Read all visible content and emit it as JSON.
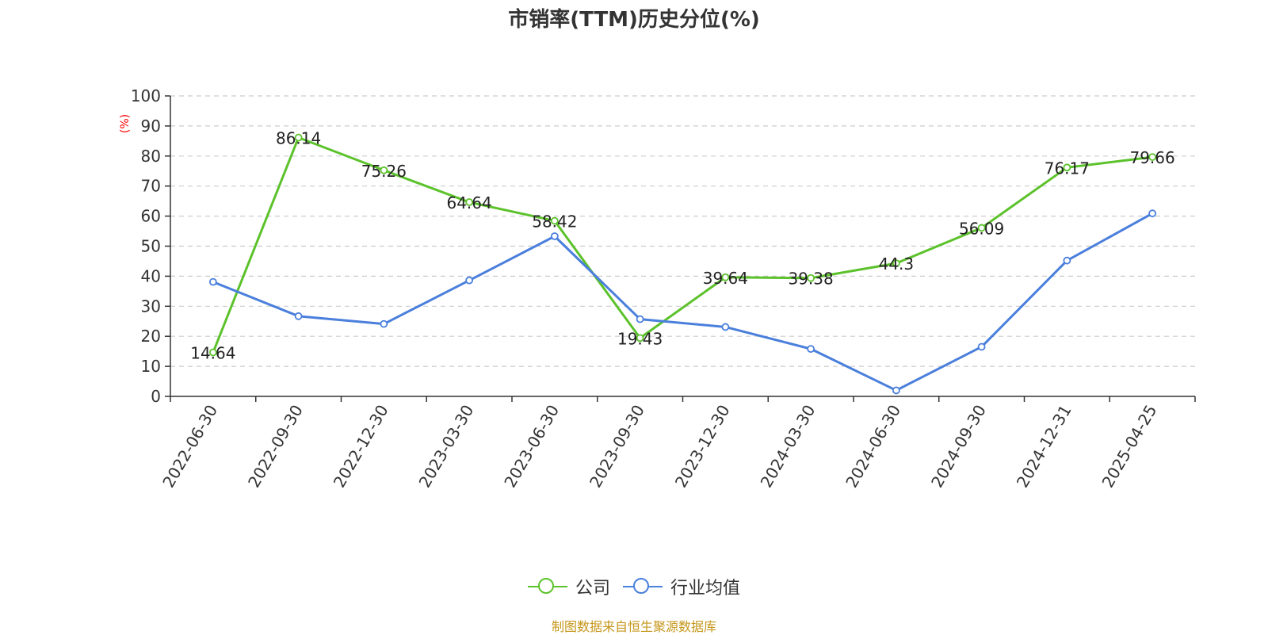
{
  "chart_data": {
    "type": "line",
    "title": "市销率(TTM)历史分位(%)",
    "ylabel": "(%)",
    "xlabel": "",
    "ylim": [
      0,
      100
    ],
    "yticks": [
      0,
      10,
      20,
      30,
      40,
      50,
      60,
      70,
      80,
      90,
      100
    ],
    "grid": true,
    "legend_position": "bottom",
    "categories": [
      "2022-06-30",
      "2022-09-30",
      "2022-12-30",
      "2023-03-30",
      "2023-06-30",
      "2023-09-30",
      "2023-12-30",
      "2024-03-30",
      "2024-06-30",
      "2024-09-30",
      "2024-12-31",
      "2025-04-25"
    ],
    "series": [
      {
        "name": "公司",
        "color": "#5cc22b",
        "values": [
          14.64,
          86.14,
          75.26,
          64.64,
          58.42,
          19.43,
          39.64,
          39.38,
          44.3,
          56.09,
          76.17,
          79.66
        ],
        "labels": [
          "14.64",
          "86.14",
          "75.26",
          "64.64",
          "58.42",
          "19.43",
          "39.64",
          "39.38",
          "44.3",
          "56.09",
          "76.17",
          "79.66"
        ]
      },
      {
        "name": "行业均值",
        "color": "#4a7fdc",
        "values": [
          38.1,
          26.7,
          24.1,
          38.6,
          53.3,
          25.7,
          23.1,
          15.8,
          2.0,
          16.5,
          45.2,
          60.9
        ]
      }
    ],
    "source": "制图数据来自恒生聚源数据库"
  }
}
